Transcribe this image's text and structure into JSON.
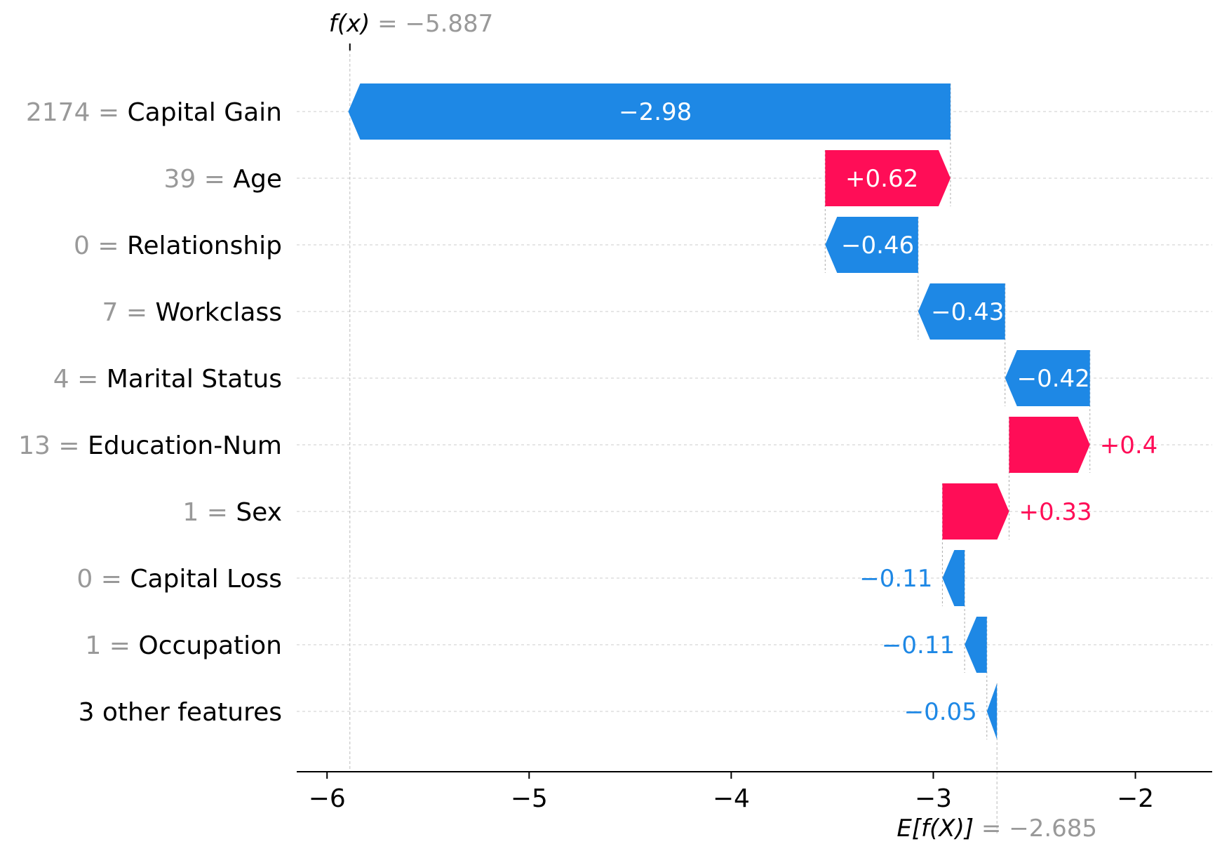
{
  "chart_data": {
    "type": "waterfall",
    "fx_label": "f(x) = −5.887",
    "fx_value": -5.887,
    "ex_label": "E[f(X)] = −2.685",
    "ex_value": -2.685,
    "xlim": [
      -6.15,
      -1.62
    ],
    "xticks": [
      -6,
      -5,
      -4,
      -3,
      -2
    ],
    "xtick_labels": [
      "−6",
      "−5",
      "−4",
      "−3",
      "−2"
    ],
    "colors": {
      "positive": "#ff0d57",
      "negative": "#1e88e5",
      "feature_value": "#999999",
      "feature_name": "#000000",
      "grid": "#cccccc"
    },
    "rows": [
      {
        "feature_value": "2174",
        "feature_name": "Capital Gain",
        "shap": -2.98,
        "label": "−2.98"
      },
      {
        "feature_value": "39",
        "feature_name": "Age",
        "shap": 0.62,
        "label": "+0.62"
      },
      {
        "feature_value": "0",
        "feature_name": "Relationship",
        "shap": -0.46,
        "label": "−0.46"
      },
      {
        "feature_value": "7",
        "feature_name": "Workclass",
        "shap": -0.43,
        "label": "−0.43"
      },
      {
        "feature_value": "4",
        "feature_name": "Marital Status",
        "shap": -0.42,
        "label": "−0.42"
      },
      {
        "feature_value": "13",
        "feature_name": "Education-Num",
        "shap": 0.4,
        "label": "+0.4"
      },
      {
        "feature_value": "1",
        "feature_name": "Sex",
        "shap": 0.33,
        "label": "+0.33"
      },
      {
        "feature_value": "0",
        "feature_name": "Capital Loss",
        "shap": -0.11,
        "label": "−0.11"
      },
      {
        "feature_value": "1",
        "feature_name": "Occupation",
        "shap": -0.11,
        "label": "−0.11"
      },
      {
        "feature_value": "",
        "feature_name": "3 other features",
        "shap": -0.05,
        "label": "−0.05"
      }
    ]
  }
}
